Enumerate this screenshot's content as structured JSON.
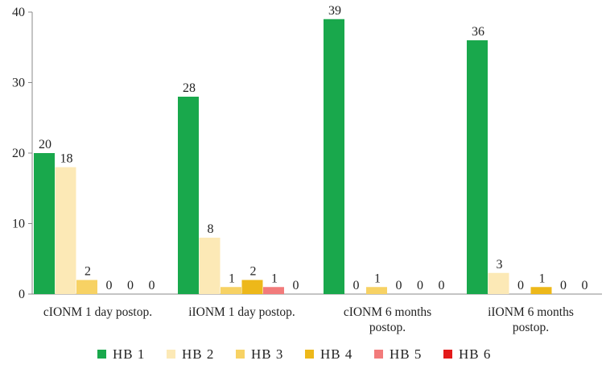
{
  "chart_data": {
    "type": "bar",
    "title": "",
    "xlabel": "",
    "ylabel": "",
    "ylim": [
      0,
      40
    ],
    "yticks": [
      0,
      10,
      20,
      30,
      40
    ],
    "grid": false,
    "legend_position": "bottom",
    "categories": [
      [
        "cIONM 1 day postop."
      ],
      [
        "iIONM 1 day postop."
      ],
      [
        "cIONM 6 months",
        "postop."
      ],
      [
        "iIONM 6 months",
        "postop."
      ]
    ],
    "series": [
      {
        "name": "HB 1",
        "color": "#19A84C",
        "values": [
          20,
          28,
          39,
          36
        ]
      },
      {
        "name": "HB 2",
        "color": "#FCE9B6",
        "values": [
          18,
          8,
          0,
          3
        ]
      },
      {
        "name": "HB 3",
        "color": "#F7D264",
        "values": [
          2,
          1,
          1,
          0
        ]
      },
      {
        "name": "HB 4",
        "color": "#EDB81A",
        "values": [
          0,
          2,
          0,
          1
        ]
      },
      {
        "name": "HB 5",
        "color": "#F27B7B",
        "values": [
          0,
          1,
          0,
          0
        ]
      },
      {
        "name": "HB 6",
        "color": "#E31A1A",
        "values": [
          0,
          0,
          0,
          0
        ]
      }
    ]
  }
}
